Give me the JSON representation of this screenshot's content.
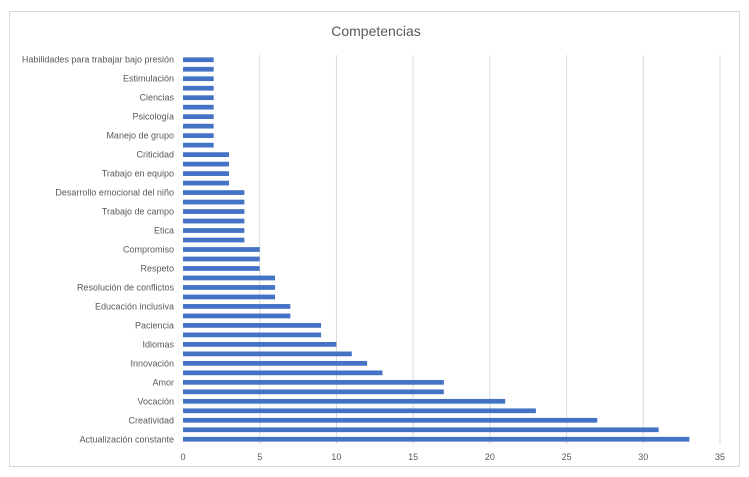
{
  "chart_data": {
    "type": "bar",
    "orientation": "horizontal",
    "title": "Competencias",
    "xlabel": "",
    "ylabel": "",
    "xlim": [
      0,
      35
    ],
    "xticks": [
      "0",
      "5",
      "10",
      "15",
      "20",
      "25",
      "30",
      "35"
    ],
    "grid": "vertical",
    "legend": "none",
    "bar_color": "#4472C4",
    "categories": [
      "Actualización constante",
      "",
      "Creatividad",
      "",
      "Vocación",
      "",
      "Amor",
      "",
      "Innovación",
      "",
      "Idiomas",
      "",
      "Paciencia",
      "",
      "Educación inclusiva",
      "",
      "Resolución de conflictos",
      "",
      "Respeto",
      "",
      "Compromiso",
      "",
      "Etica",
      "",
      "Trabajo de campo",
      "",
      "Desarrollo emocional del niño",
      "",
      "Trabajo en equipo",
      "",
      "Criticidad",
      "",
      "Manejo de grupo",
      "",
      "Psicología",
      "",
      "Ciencias",
      "",
      "Estimulación",
      "",
      "Habilidades para trabajar bajo presión"
    ],
    "values": [
      33,
      31,
      27,
      23,
      21,
      17,
      17,
      13,
      12,
      11,
      10,
      9,
      9,
      7,
      7,
      6,
      6,
      6,
      5,
      5,
      5,
      4,
      4,
      4,
      4,
      4,
      4,
      3,
      3,
      3,
      3,
      2,
      2,
      2,
      2,
      2,
      2,
      2,
      2,
      2,
      2
    ]
  }
}
